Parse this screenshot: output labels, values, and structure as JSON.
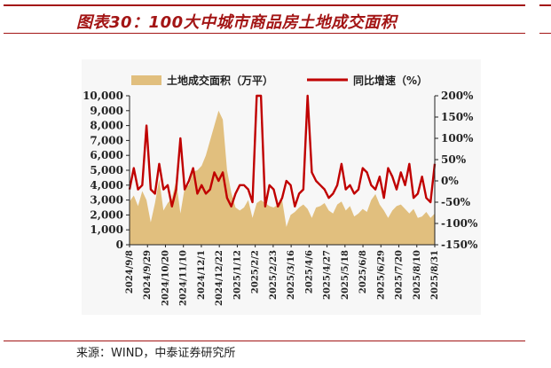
{
  "header": {
    "title": "图表30：100大中城市商品房土地成交面积"
  },
  "footer": {
    "source": "来源：WIND，中泰证券研究所"
  },
  "chart_data": {
    "type": "area+line",
    "title": "",
    "legend_position": "top",
    "series": [
      {
        "name": "土地成交面积（万平）",
        "kind": "area",
        "axis": "left",
        "color": "#e1bf7e",
        "values": [
          2900,
          3300,
          2600,
          3600,
          3000,
          1500,
          2800,
          4400,
          2300,
          2800,
          3100,
          4300,
          2100,
          3800,
          4000,
          4900,
          5000,
          5300,
          6000,
          7000,
          8000,
          9000,
          8400,
          5000,
          3500,
          2500,
          2300,
          2500,
          3000,
          1800,
          2800,
          3000,
          2800,
          2600,
          2500,
          2700,
          3000,
          1200,
          2000,
          2200,
          2500,
          2700,
          2400,
          1800,
          2500,
          2600,
          2800,
          2300,
          2100,
          2700,
          2900,
          2300,
          2600,
          1900,
          2100,
          2400,
          2200,
          3000,
          3400,
          2700,
          2300,
          1800,
          2300,
          2600,
          2700,
          2400,
          2100,
          2400,
          1800,
          1900,
          2200,
          1800,
          2100
        ]
      },
      {
        "name": "同比增速（%）",
        "kind": "line",
        "axis": "right",
        "color": "#c00000",
        "values": [
          -20,
          30,
          -20,
          -10,
          130,
          -20,
          -30,
          40,
          -20,
          -10,
          -60,
          -20,
          100,
          -20,
          0,
          30,
          -30,
          -10,
          -30,
          -20,
          20,
          0,
          20,
          -40,
          -60,
          -30,
          -10,
          -10,
          -20,
          -50,
          200,
          200,
          -60,
          -10,
          -20,
          -60,
          -40,
          0,
          -10,
          -60,
          -30,
          -20,
          200,
          20,
          0,
          -10,
          -20,
          -40,
          -30,
          -10,
          40,
          -20,
          -10,
          -30,
          -20,
          30,
          20,
          -10,
          -20,
          10,
          -40,
          30,
          10,
          -20,
          20,
          -10,
          40,
          -40,
          -30,
          10,
          -40,
          -50,
          40
        ]
      }
    ],
    "x_tick_labels": [
      "2024/9/8",
      "2024/9/29",
      "2024/10/20",
      "2024/11/10",
      "2024/12/1",
      "2024/12/22",
      "2025/1/12",
      "2025/2/2",
      "2025/2/23",
      "2025/3/16",
      "2025/4/6",
      "2025/4/27",
      "2025/5/18",
      "2025/6/8",
      "2025/6/29",
      "2025/7/20",
      "2025/8/10",
      "2025/8/31"
    ],
    "y_left": {
      "min": 0,
      "max": 10000,
      "tick_labels": [
        "0",
        "1,000",
        "2,000",
        "3,000",
        "4,000",
        "5,000",
        "6,000",
        "7,000",
        "8,000",
        "9,000",
        "10,000"
      ]
    },
    "y_right": {
      "min": -150,
      "max": 200,
      "tick_labels": [
        "-150%",
        "-100%",
        "-50%",
        "0%",
        "50%",
        "100%",
        "150%",
        "200%"
      ]
    },
    "grid": false
  }
}
